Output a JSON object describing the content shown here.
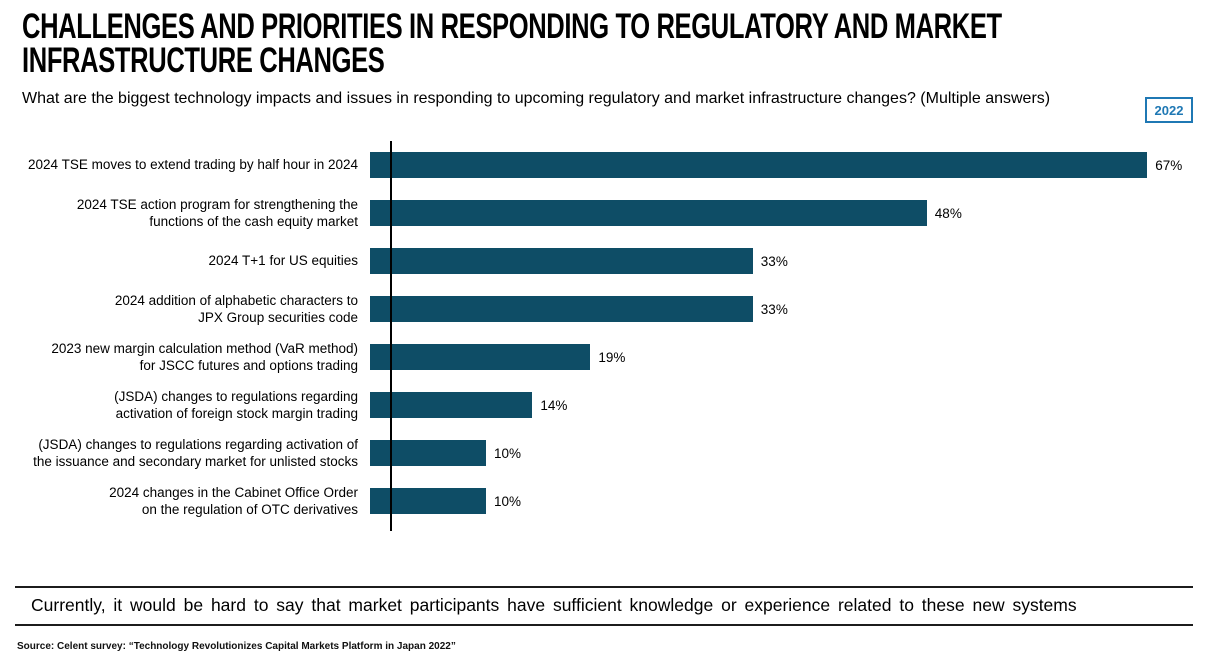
{
  "header": {
    "title_lines": [
      "CHALLENGES AND PRIORITIES IN RESPONDING TO REGULATORY AND MARKET",
      "INFRASTRUCTURE CHANGES"
    ],
    "subtitle": "What are the biggest technology impacts and issues in responding to upcoming regulatory and market infrastructure changes? (Multiple answers)",
    "year_badge": "2022"
  },
  "chart_data": {
    "type": "bar",
    "orientation": "horizontal",
    "unit": "percent",
    "xlim": [
      0,
      70
    ],
    "grid": false,
    "legend": false,
    "bar_color": "#0E4D66",
    "categories": [
      "2024 TSE moves to extend trading by half hour in 2024",
      "2024 TSE action program for strengthening the\nfunctions of the cash equity market",
      "2024 T+1 for US equities",
      "2024 addition of alphabetic characters to\nJPX Group securities code",
      "2023 new margin calculation method (VaR method)\nfor JSCC futures and options trading",
      "(JSDA) changes to regulations regarding\nactivation of foreign stock margin trading",
      "(JSDA) changes to regulations regarding activation of\nthe issuance and secondary market for unlisted stocks",
      "2024 changes in the Cabinet Office Order\non the regulation of OTC derivatives"
    ],
    "values": [
      67,
      48,
      33,
      33,
      19,
      14,
      10,
      10
    ],
    "value_labels": [
      "67%",
      "48%",
      "33%",
      "33%",
      "19%",
      "14%",
      "10%",
      "10%"
    ]
  },
  "footer": {
    "quote": "Currently, it would be hard to say that market participants have sufficient knowledge or experience related to these new systems",
    "source": "Source: Celent survey: “Technology Revolutionizes Capital Markets Platform in Japan 2022”"
  },
  "colors": {
    "bar": "#0E4D66",
    "badge_blue": "#1F78B4",
    "axis": "#000000"
  }
}
